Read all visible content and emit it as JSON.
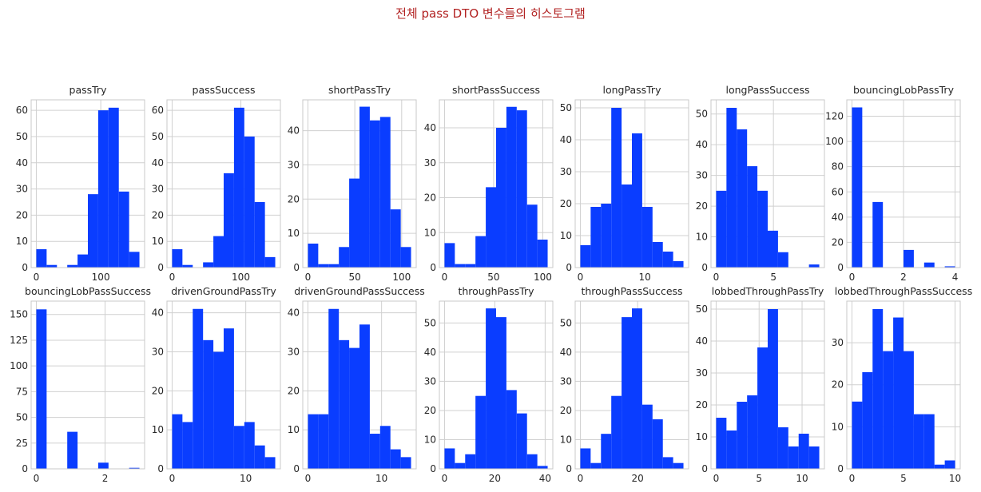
{
  "figure": {
    "title": "전체 pass DTO 변수들의 히스토그램"
  },
  "colors": {
    "bar": "#0a3dff",
    "grid": "#d0d0d0",
    "frame": "#c8c8c8",
    "title": "#b22222"
  },
  "chart_data": [
    {
      "type": "bar",
      "title": "passTry",
      "row": 0,
      "col": 0,
      "edges": [
        0,
        16,
        32,
        48,
        64,
        80,
        96,
        112,
        128,
        144,
        160
      ],
      "values": [
        7,
        1,
        0,
        1,
        5,
        28,
        60,
        61,
        29,
        6
      ],
      "xlim": [
        -8,
        168
      ],
      "ylim": [
        0,
        64
      ],
      "xticks": [
        0,
        100
      ],
      "yticks": [
        0,
        10,
        20,
        30,
        40,
        50,
        60
      ]
    },
    {
      "type": "bar",
      "title": "passSuccess",
      "row": 0,
      "col": 1,
      "edges": [
        0,
        15,
        30,
        45,
        60,
        75,
        90,
        105,
        120,
        135,
        150
      ],
      "values": [
        7,
        1,
        0,
        2,
        12,
        36,
        61,
        50,
        25,
        4
      ],
      "xlim": [
        -7.5,
        157.5
      ],
      "ylim": [
        0,
        64
      ],
      "xticks": [
        0,
        100
      ],
      "yticks": [
        0,
        10,
        20,
        30,
        40,
        50,
        60
      ]
    },
    {
      "type": "bar",
      "title": "shortPassTry",
      "row": 0,
      "col": 2,
      "edges": [
        0,
        11,
        22,
        33,
        44,
        55,
        66,
        77,
        88,
        99,
        110
      ],
      "values": [
        7,
        1,
        1,
        6,
        26,
        47,
        43,
        44,
        17,
        6
      ],
      "xlim": [
        -5.5,
        115.5
      ],
      "ylim": [
        0,
        49
      ],
      "xticks": [
        0,
        50,
        100
      ],
      "yticks": [
        0,
        10,
        20,
        30,
        40
      ]
    },
    {
      "type": "bar",
      "title": "shortPassSuccess",
      "row": 0,
      "col": 3,
      "edges": [
        0,
        10.5,
        21,
        31.5,
        42,
        52.5,
        63,
        73.5,
        84,
        94.5,
        105
      ],
      "values": [
        7,
        1,
        1,
        9,
        23,
        40,
        46,
        45,
        18,
        8
      ],
      "xlim": [
        -5.25,
        110.25
      ],
      "ylim": [
        0,
        48
      ],
      "xticks": [
        0,
        50,
        100
      ],
      "yticks": [
        0,
        10,
        20,
        30,
        40
      ]
    },
    {
      "type": "bar",
      "title": "longPassTry",
      "row": 0,
      "col": 4,
      "edges": [
        0,
        1.6,
        3.2,
        4.8,
        6.4,
        8,
        9.6,
        11.2,
        12.8,
        14.4,
        16
      ],
      "values": [
        7,
        19,
        20,
        50,
        26,
        42,
        19,
        8,
        5,
        2
      ],
      "xlim": [
        -0.8,
        16.8
      ],
      "ylim": [
        0,
        52.5
      ],
      "xticks": [
        0,
        10
      ],
      "yticks": [
        0,
        10,
        20,
        30,
        40,
        50
      ]
    },
    {
      "type": "bar",
      "title": "longPassSuccess",
      "row": 0,
      "col": 5,
      "edges": [
        0,
        0.9,
        1.8,
        2.7,
        3.6,
        4.5,
        5.4,
        6.3,
        7.2,
        8.1,
        9
      ],
      "values": [
        25,
        52,
        45,
        33,
        25,
        12,
        5,
        0,
        0,
        1
      ],
      "xlim": [
        -0.45,
        9.45
      ],
      "ylim": [
        0,
        54.6
      ],
      "xticks": [
        0,
        5
      ],
      "yticks": [
        0,
        10,
        20,
        30,
        40,
        50
      ]
    },
    {
      "type": "bar",
      "title": "bouncingLobPassTry",
      "row": 0,
      "col": 6,
      "edges": [
        0,
        0.4,
        0.8,
        1.2,
        1.6,
        2,
        2.4,
        2.8,
        3.2,
        3.6,
        4
      ],
      "values": [
        127,
        0,
        52,
        0,
        0,
        14,
        0,
        4,
        0,
        1
      ],
      "xlim": [
        -0.2,
        4.2
      ],
      "ylim": [
        0,
        133
      ],
      "xticks": [
        0,
        2,
        4
      ],
      "yticks": [
        0,
        20,
        40,
        60,
        80,
        100,
        120
      ]
    },
    {
      "type": "bar",
      "title": "bouncingLobPassSuccess",
      "row": 1,
      "col": 0,
      "edges": [
        0,
        0.3,
        0.6,
        0.9,
        1.2,
        1.5,
        1.8,
        2.1,
        2.4,
        2.7,
        3
      ],
      "values": [
        155,
        0,
        0,
        36,
        0,
        0,
        6,
        0,
        0,
        1
      ],
      "xlim": [
        -0.15,
        3.15
      ],
      "ylim": [
        0,
        163
      ],
      "xticks": [
        0,
        2
      ],
      "yticks": [
        0,
        25,
        50,
        75,
        100,
        125,
        150
      ]
    },
    {
      "type": "bar",
      "title": "drivenGroundPassTry",
      "row": 1,
      "col": 1,
      "edges": [
        0,
        1.4,
        2.8,
        4.2,
        5.6,
        7,
        8.4,
        9.8,
        11.2,
        12.6,
        14
      ],
      "values": [
        14,
        12,
        41,
        33,
        30,
        36,
        11,
        12,
        6,
        3
      ],
      "xlim": [
        -0.7,
        14.7
      ],
      "ylim": [
        0,
        43
      ],
      "xticks": [
        0,
        10
      ],
      "yticks": [
        0,
        10,
        20,
        30,
        40
      ]
    },
    {
      "type": "bar",
      "title": "drivenGroundPassSuccess",
      "row": 1,
      "col": 2,
      "edges": [
        0,
        1.4,
        2.8,
        4.2,
        5.6,
        7,
        8.4,
        9.8,
        11.2,
        12.6,
        14
      ],
      "values": [
        14,
        14,
        41,
        33,
        31,
        37,
        9,
        11,
        5,
        3
      ],
      "xlim": [
        -0.7,
        14.7
      ],
      "ylim": [
        0,
        43
      ],
      "xticks": [
        0,
        10
      ],
      "yticks": [
        0,
        10,
        20,
        30,
        40
      ]
    },
    {
      "type": "bar",
      "title": "throughPassTry",
      "row": 1,
      "col": 3,
      "edges": [
        0,
        4.1,
        8.2,
        12.3,
        16.4,
        20.5,
        24.6,
        28.7,
        32.8,
        36.9,
        41
      ],
      "values": [
        7,
        2,
        5,
        25,
        55,
        52,
        27,
        19,
        5,
        1
      ],
      "xlim": [
        -2.05,
        43.05
      ],
      "ylim": [
        0,
        57.5
      ],
      "xticks": [
        0,
        20,
        40
      ],
      "yticks": [
        0,
        10,
        20,
        30,
        40,
        50
      ]
    },
    {
      "type": "bar",
      "title": "throughPassSuccess",
      "row": 1,
      "col": 4,
      "edges": [
        0,
        3.6,
        7.2,
        10.8,
        14.4,
        18,
        21.6,
        25.2,
        28.8,
        32.4,
        36
      ],
      "values": [
        7,
        2,
        12,
        25,
        52,
        55,
        22,
        17,
        4,
        2
      ],
      "xlim": [
        -1.8,
        37.8
      ],
      "ylim": [
        0,
        57.5
      ],
      "xticks": [
        0,
        20
      ],
      "yticks": [
        0,
        10,
        20,
        30,
        40,
        50
      ]
    },
    {
      "type": "bar",
      "title": "lobbedThroughPassTry",
      "row": 1,
      "col": 5,
      "edges": [
        0,
        1.2,
        2.4,
        3.6,
        4.8,
        6,
        7.2,
        8.4,
        9.6,
        10.8,
        12
      ],
      "values": [
        16,
        12,
        21,
        23,
        38,
        50,
        13,
        7,
        11,
        7
      ],
      "xlim": [
        -0.6,
        12.6
      ],
      "ylim": [
        0,
        52.5
      ],
      "xticks": [
        0,
        5,
        10
      ],
      "yticks": [
        0,
        10,
        20,
        30,
        40,
        50
      ]
    },
    {
      "type": "bar",
      "title": "lobbedThroughPassSuccess",
      "row": 1,
      "col": 6,
      "edges": [
        0,
        1,
        2,
        3,
        4,
        5,
        6,
        7,
        8,
        9,
        10
      ],
      "values": [
        16,
        23,
        38,
        28,
        36,
        28,
        13,
        13,
        1,
        2
      ],
      "xlim": [
        -0.5,
        10.5
      ],
      "ylim": [
        0,
        39.9
      ],
      "xticks": [
        0,
        5,
        10
      ],
      "yticks": [
        0,
        10,
        20,
        30
      ]
    }
  ]
}
